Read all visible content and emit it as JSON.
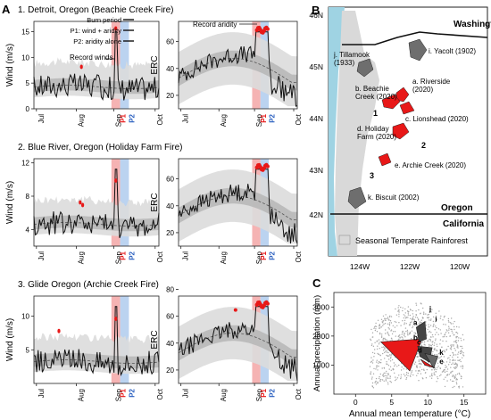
{
  "panel_labels": {
    "a": "A",
    "b": "B",
    "c": "C"
  },
  "months": [
    "Jul",
    "Aug",
    "Sep",
    "Oct"
  ],
  "period_labels": {
    "p1": "P1",
    "p2": "P2"
  },
  "wind_ylabel": "Wind (m/s)",
  "erc_ylabel": "ERC",
  "colors": {
    "p1_band": "#f2a0a0",
    "p2_band": "#aac8ec",
    "record": "#e81818",
    "series": "#111111",
    "shade_light": "#dcdcdc",
    "shade_dark": "#b8b8b8",
    "ocean": "#9fd3e3",
    "land": "#ffffff",
    "rainforest": "#d9d9d9",
    "burn": "#e81818",
    "hist_fire": "#6e6e6e"
  },
  "rows": [
    {
      "title": "1. Detroit, Oregon (Beachie Creek Fire)",
      "wind_ticks": [
        0,
        5,
        10,
        15
      ],
      "erc_ticks": [
        20,
        40,
        60
      ],
      "key": {
        "burn": "Burn period",
        "p1": "P1: wind + aridity",
        "p2": "P2: aridity alone"
      },
      "record_winds_label": "Record winds",
      "record_aridity_label": "Record aridity"
    },
    {
      "title": "2. Blue River, Oregon (Holiday Farm Fire)",
      "wind_ticks": [
        4,
        8,
        12
      ],
      "erc_ticks": [
        20,
        40,
        60
      ]
    },
    {
      "title": "3. Glide Oregon (Archie Creek Fire)",
      "wind_ticks": [
        5,
        10
      ],
      "erc_ticks": [
        20,
        40,
        60,
        80
      ]
    }
  ],
  "map": {
    "lat_labels": [
      "46N",
      "45N",
      "44N",
      "43N",
      "42N"
    ],
    "lon_labels": [
      "124W",
      "122W",
      "120W"
    ],
    "states": {
      "washington": "Washington",
      "oregon": "Oregon",
      "california": "California"
    },
    "legend": "Seasonal Temperate Rainforest",
    "fires": {
      "yacolt": "i. Yacolt (1902)",
      "tillamook": "j. Tillamook\n(1933)",
      "riverside": "a. Riverside\n(2020)",
      "beachie": "b. Beachie\nCreek (2020)",
      "lionshead": "c. Lionshead (2020)",
      "holiday": "d. Holiday\nFarm (2020)",
      "archie": "e. Archie Creek (2020)",
      "biscuit": "k. Biscuit (2002)"
    },
    "numbers": [
      "1",
      "2",
      "3"
    ]
  },
  "scatter": {
    "xlabel": "Annual mean temperature (°C)",
    "ylabel": "Annual precipitation (mm)",
    "xticks": [
      0,
      5,
      10,
      15
    ],
    "yticks": [
      1000,
      2000,
      3000
    ],
    "xlim": [
      -3,
      18
    ],
    "ylim": [
      0,
      3500
    ],
    "labels": [
      "a",
      "b",
      "c",
      "d",
      "e",
      "i",
      "j",
      "k"
    ]
  }
}
